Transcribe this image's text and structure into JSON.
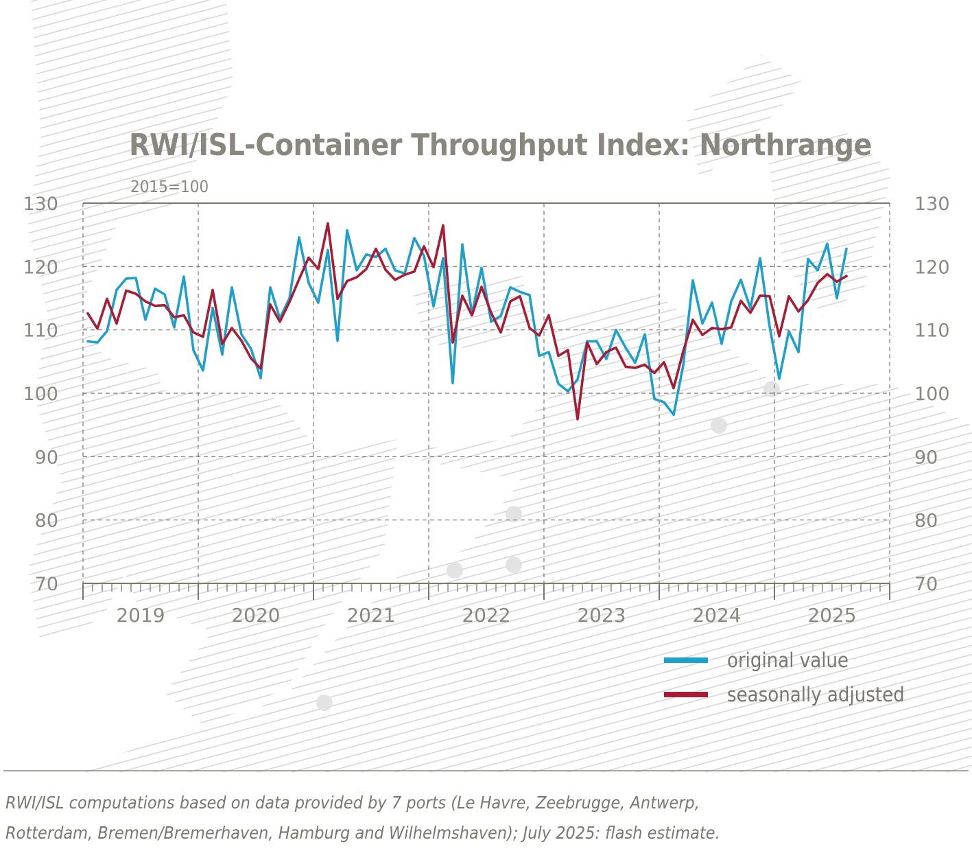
{
  "title": "RWI/ISL-Container Throughput Index: Northrange",
  "subtitle": "2015=100",
  "footnote": [
    "RWI/ISL computations based on data provided by 7 ports (Le Havre, Zeebrugge, Antwerp,",
    "Rotterdam, Bremen/Bremerhaven, Hamburg and Wilhelmshaven); July 2025: flash estimate."
  ],
  "colors": {
    "original": "#1fa0cc",
    "adjusted": "#a71d35",
    "grid": "#7a776f",
    "text": "#8a877e",
    "hatch": "#d6d6d6"
  },
  "chart_data": {
    "type": "line",
    "title": "RWI/ISL-Container Throughput Index: Northrange",
    "subtitle": "2015=100",
    "ylim": [
      70,
      130
    ],
    "yticks": [
      "70",
      "80",
      "90",
      "100",
      "110",
      "120",
      "130"
    ],
    "years": [
      "2019",
      "2020",
      "2021",
      "2022",
      "2023",
      "2024",
      "2025"
    ],
    "x_start": "2019-01",
    "grid": "dashed",
    "legend_position": "bottom-right",
    "series": [
      {
        "name": "original value",
        "color": "#1fa0cc",
        "values": [
          108.2,
          108.0,
          109.8,
          116.3,
          118.1,
          118.2,
          111.6,
          116.5,
          115.6,
          110.4,
          118.4,
          106.8,
          103.6,
          113.5,
          106.1,
          116.7,
          109.3,
          107.0,
          102.4,
          116.7,
          111.8,
          115.0,
          124.6,
          117.4,
          114.3,
          122.6,
          108.3,
          125.7,
          119.4,
          121.9,
          121.5,
          122.8,
          119.4,
          118.9,
          124.5,
          121.7,
          113.7,
          121.3,
          101.6,
          123.5,
          112.5,
          119.8,
          111.3,
          112.2,
          116.7,
          116.0,
          115.5,
          105.9,
          106.5,
          101.5,
          100.3,
          102.2,
          108.2,
          108.2,
          105.4,
          110.0,
          107.2,
          104.8,
          109.3,
          99.1,
          98.6,
          96.6,
          104.4,
          117.8,
          111.0,
          114.3,
          107.8,
          114.5,
          117.9,
          113.4,
          121.3,
          110.5,
          102.3,
          109.8,
          106.5,
          121.2,
          119.4,
          123.6,
          115.0,
          122.8
        ]
      },
      {
        "name": "seasonally adjusted",
        "color": "#a71d35",
        "values": [
          112.6,
          110.2,
          114.9,
          111.0,
          116.2,
          115.7,
          114.5,
          113.8,
          113.9,
          112.0,
          112.3,
          109.6,
          108.9,
          116.3,
          107.8,
          110.3,
          108.3,
          105.5,
          103.9,
          114.0,
          111.3,
          114.4,
          118.0,
          121.4,
          119.6,
          126.8,
          114.9,
          117.7,
          118.3,
          119.6,
          122.8,
          119.5,
          117.9,
          118.7,
          119.2,
          123.2,
          119.9,
          126.5,
          108.0,
          115.4,
          112.3,
          116.8,
          112.7,
          109.6,
          114.5,
          115.3,
          110.3,
          109.1,
          112.3,
          105.9,
          106.8,
          95.9,
          108.0,
          104.6,
          106.5,
          107.2,
          104.2,
          104.0,
          104.5,
          103.2,
          104.9,
          100.8,
          106.6,
          111.6,
          109.2,
          110.3,
          110.1,
          110.4,
          114.6,
          112.7,
          115.4,
          115.3,
          109.0,
          115.3,
          112.9,
          114.7,
          117.4,
          118.8,
          117.6,
          118.5
        ]
      }
    ]
  }
}
